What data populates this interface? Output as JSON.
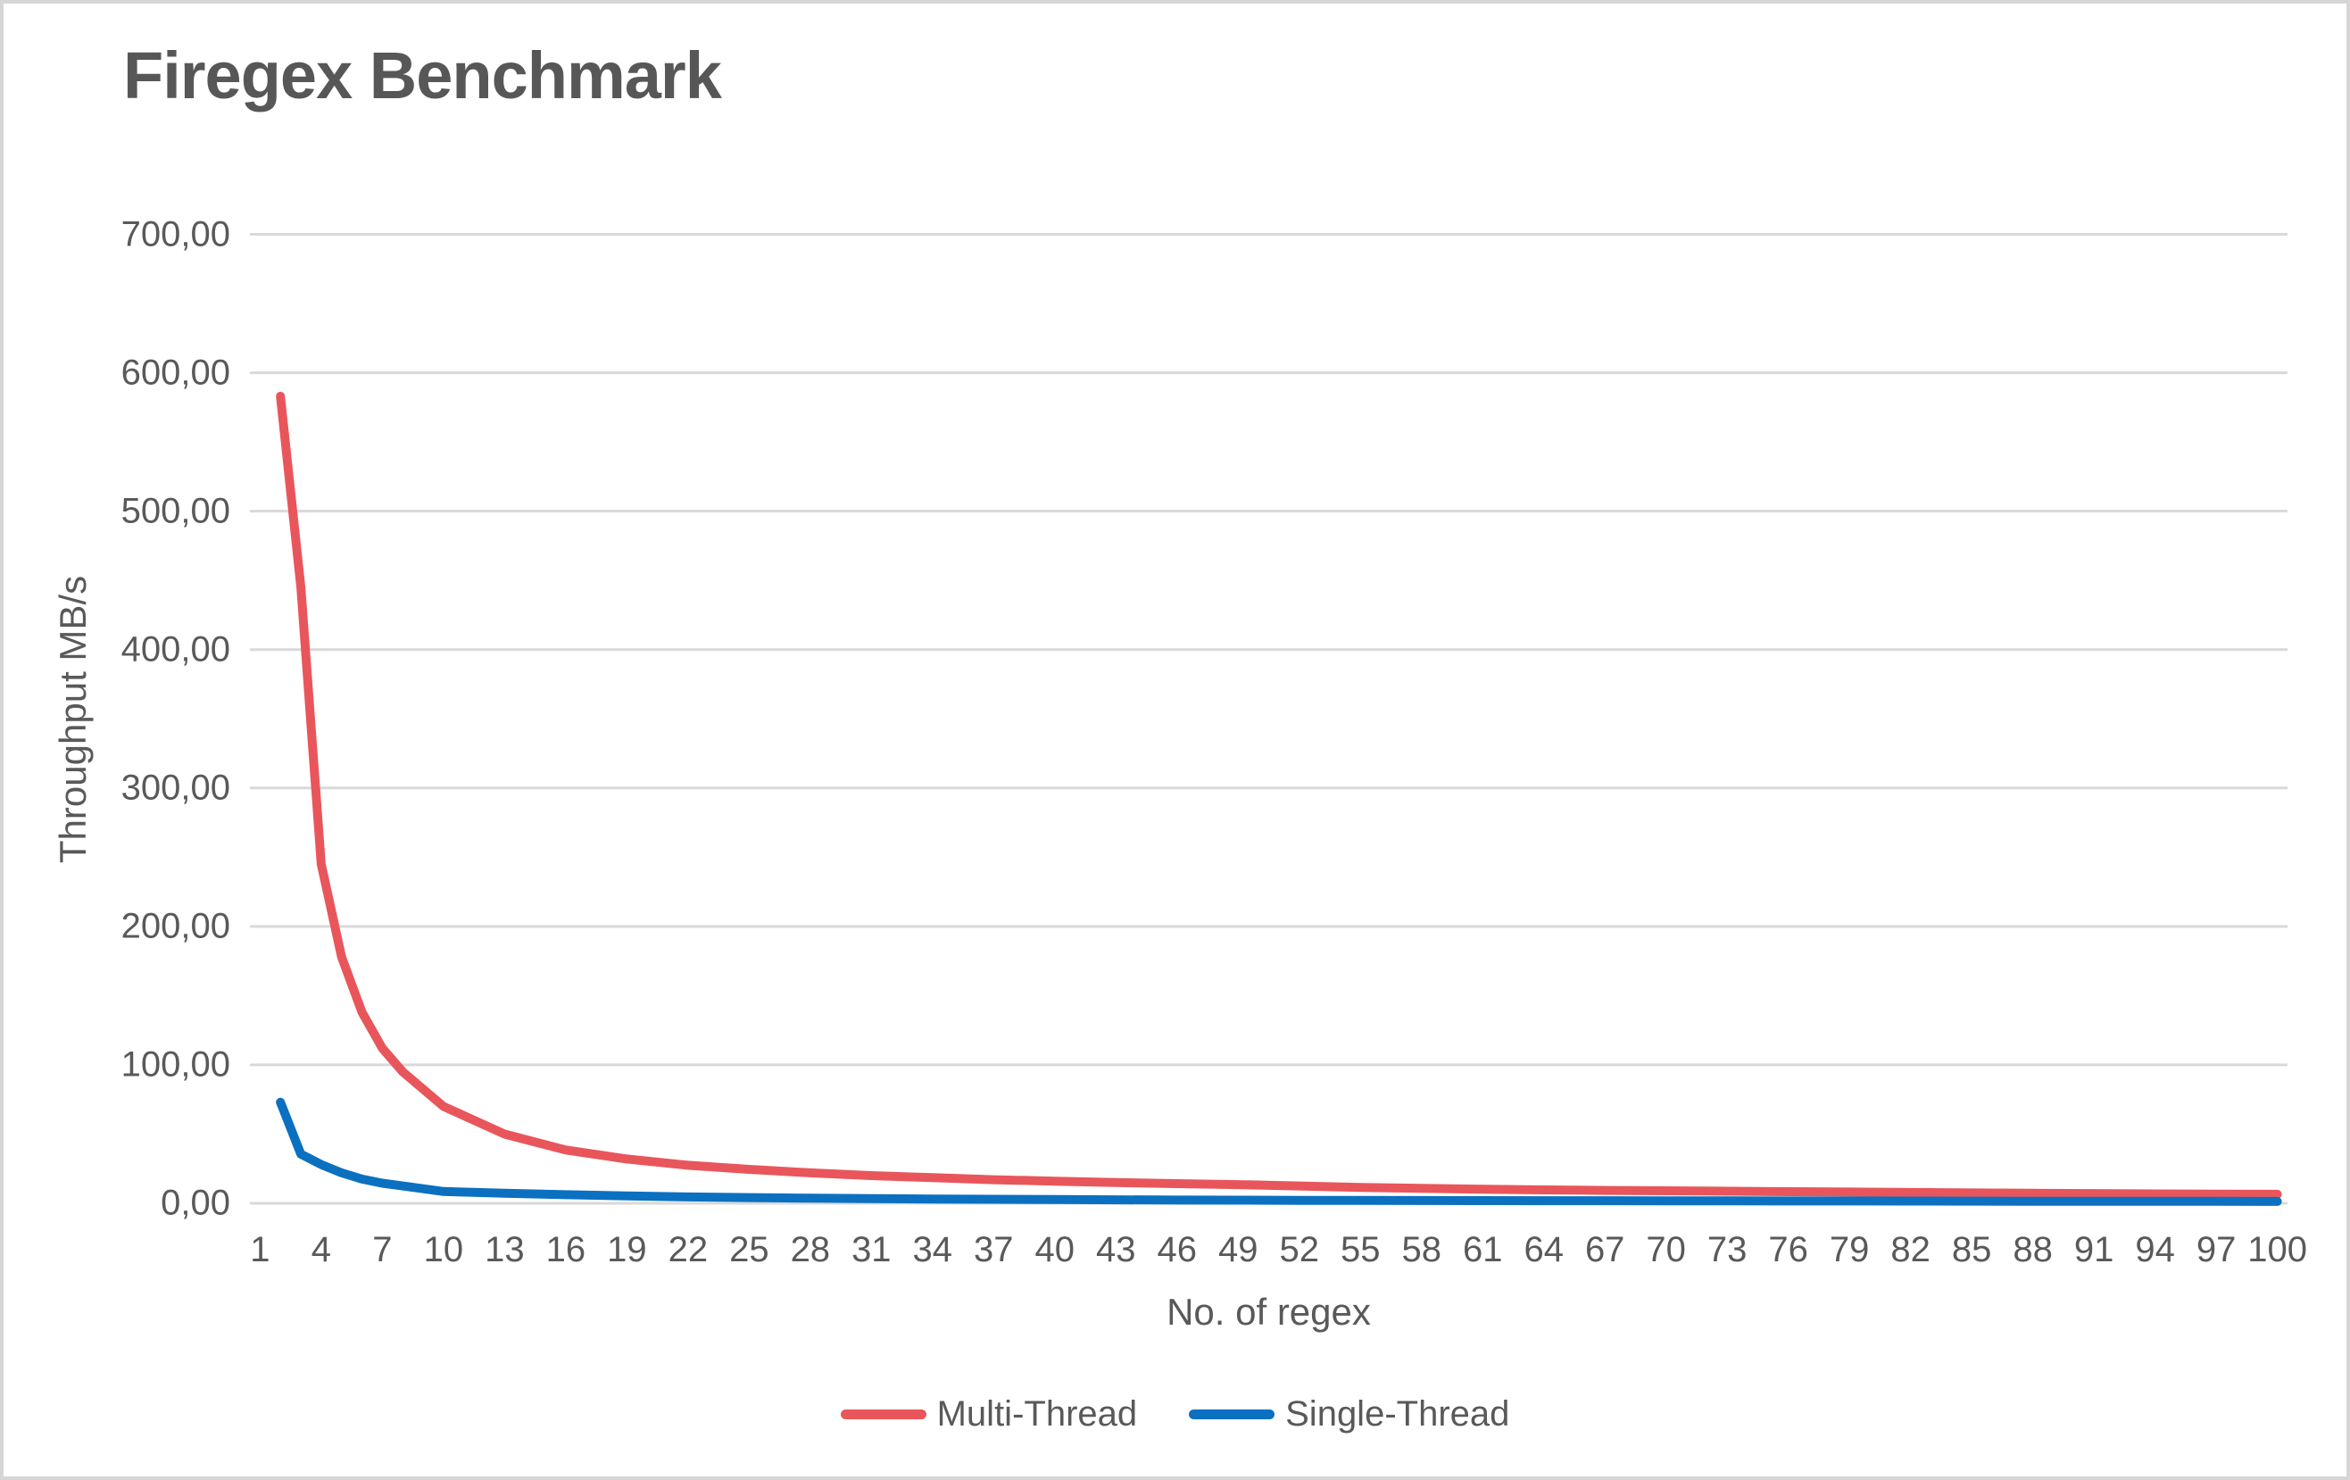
{
  "chart_data": {
    "type": "line",
    "title": "Firegex Benchmark",
    "xlabel": "No. of regex",
    "ylabel": "Throughput MB/s",
    "ylim": [
      0,
      700
    ],
    "xlim": [
      1,
      100
    ],
    "grid": "horizontal",
    "legend_position": "bottom",
    "gridline_color": "#d9d9d9",
    "text_color": "#595959",
    "y_ticks": [
      {
        "label": "700,00",
        "value": 700
      },
      {
        "label": "600,00",
        "value": 600
      },
      {
        "label": "500,00",
        "value": 500
      },
      {
        "label": "400,00",
        "value": 400
      },
      {
        "label": "300,00",
        "value": 300
      },
      {
        "label": "200,00",
        "value": 200
      },
      {
        "label": "100,00",
        "value": 100
      },
      {
        "label": "0,00",
        "value": 0
      }
    ],
    "x_tick_labels": [
      1,
      4,
      7,
      10,
      13,
      16,
      19,
      22,
      25,
      28,
      31,
      34,
      37,
      40,
      43,
      46,
      49,
      52,
      55,
      58,
      61,
      64,
      67,
      70,
      73,
      76,
      79,
      82,
      85,
      88,
      91,
      94,
      97,
      100
    ],
    "x": [
      2,
      3,
      4,
      5,
      6,
      7,
      8,
      10,
      13,
      16,
      19,
      22,
      25,
      28,
      31,
      34,
      37,
      40,
      43,
      46,
      49,
      52,
      55,
      58,
      61,
      64,
      67,
      70,
      73,
      76,
      79,
      82,
      85,
      88,
      91,
      94,
      97,
      100
    ],
    "series": [
      {
        "name": "Multi-Thread",
        "color": "#e8565b",
        "values": [
          583,
          445,
          245,
          178,
          138,
          112,
          95,
          70,
          50,
          38.5,
          32,
          27.5,
          24.5,
          22,
          20,
          18.5,
          17,
          16,
          15,
          14.2,
          13.5,
          12.5,
          11.5,
          10.8,
          10.2,
          9.7,
          9.3,
          9,
          8.7,
          8.4,
          8.1,
          7.8,
          7.5,
          7.2,
          7,
          6.8,
          6.6,
          6.5
        ]
      },
      {
        "name": "Single-Thread",
        "color": "#0b70c0",
        "values": [
          73,
          35.5,
          28,
          22,
          17.5,
          14.5,
          12.5,
          8.5,
          7.2,
          6.2,
          5.3,
          4.6,
          4.1,
          3.7,
          3.4,
          3.1,
          2.9,
          2.7,
          2.5,
          2.35,
          2.25,
          2.15,
          2.05,
          2,
          1.95,
          1.9,
          1.85,
          1.8,
          1.75,
          1.7,
          1.65,
          1.6,
          1.55,
          1.5,
          1.5,
          1.45,
          1.4,
          1.35
        ]
      }
    ]
  }
}
